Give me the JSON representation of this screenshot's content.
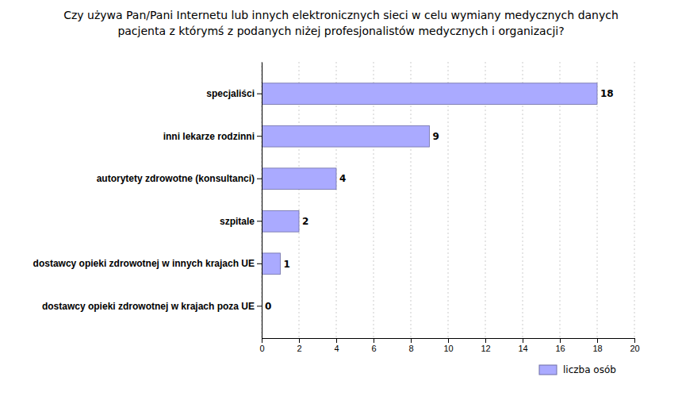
{
  "chart_data": {
    "type": "bar",
    "orientation": "horizontal",
    "title": "Czy używa Pan/Pani Internetu lub innych elektronicznych sieci w celu wymiany medycznych danych",
    "subtitle": "pacjenta  z którymś z podanych niżej profesjonalistów medycznych i organizacji?",
    "categories": [
      "dostawcy opieki zdrowotnej w krajach poza UE",
      "dostawcy opieki zdrowotnej w innych krajach UE",
      "szpitale",
      "autorytety zdrowotne (konsultanci)",
      "inni lekarze rodzinni",
      "specjaliści"
    ],
    "series": [
      {
        "name": "liczba osób",
        "color": "#aaaaff",
        "values": [
          0,
          1,
          2,
          4,
          9,
          18
        ]
      }
    ],
    "xlim": [
      0,
      20
    ],
    "xticks": [
      0,
      2,
      4,
      6,
      8,
      10,
      12,
      14,
      16,
      18,
      20
    ],
    "grid": true,
    "legend": "bottom-right",
    "data_labels": true
  }
}
